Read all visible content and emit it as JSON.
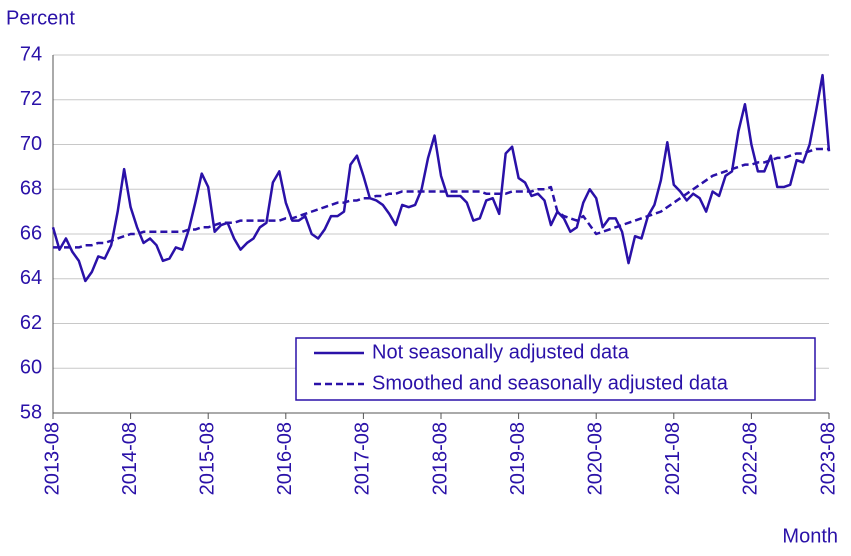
{
  "chart_data": {
    "type": "line",
    "ylabel": "Percent",
    "xlabel": "Month",
    "categories": [
      "2013-08",
      null,
      null,
      null,
      null,
      null,
      null,
      null,
      null,
      null,
      null,
      null,
      "2014-08",
      null,
      null,
      null,
      null,
      null,
      null,
      null,
      null,
      null,
      null,
      null,
      "2015-08",
      null,
      null,
      null,
      null,
      null,
      null,
      null,
      null,
      null,
      null,
      null,
      "2016-08",
      null,
      null,
      null,
      null,
      null,
      null,
      null,
      null,
      null,
      null,
      null,
      "2017-08",
      null,
      null,
      null,
      null,
      null,
      null,
      null,
      null,
      null,
      null,
      null,
      "2018-08",
      null,
      null,
      null,
      null,
      null,
      null,
      null,
      null,
      null,
      null,
      null,
      "2019-08",
      null,
      null,
      null,
      null,
      null,
      null,
      null,
      null,
      null,
      null,
      null,
      "2020-08",
      null,
      null,
      null,
      null,
      null,
      null,
      null,
      null,
      null,
      null,
      null,
      "2021-08",
      null,
      null,
      null,
      null,
      null,
      null,
      null,
      null,
      null,
      null,
      null,
      "2022-08",
      null,
      null,
      null,
      null,
      null,
      null,
      null,
      null,
      null,
      null,
      null,
      "2023-08"
    ],
    "series": [
      {
        "name": "Not seasonally adjusted data",
        "color": "#2a11a8",
        "dash": false,
        "values": [
          66.3,
          65.3,
          65.8,
          65.2,
          64.8,
          63.9,
          64.3,
          65.0,
          64.9,
          65.5,
          67.0,
          68.9,
          67.2,
          66.3,
          65.6,
          65.8,
          65.5,
          64.8,
          64.9,
          65.4,
          65.3,
          66.2,
          67.4,
          68.7,
          68.1,
          66.1,
          66.4,
          66.5,
          65.8,
          65.3,
          65.6,
          65.8,
          66.3,
          66.5,
          68.3,
          68.8,
          67.4,
          66.6,
          66.6,
          66.8,
          66.0,
          65.8,
          66.2,
          66.8,
          66.8,
          67.0,
          69.1,
          69.5,
          68.6,
          67.6,
          67.5,
          67.3,
          66.9,
          66.4,
          67.3,
          67.2,
          67.3,
          68.0,
          69.4,
          70.4,
          68.6,
          67.7,
          67.7,
          67.7,
          67.4,
          66.6,
          66.7,
          67.5,
          67.6,
          66.9,
          69.6,
          69.9,
          68.5,
          68.3,
          67.7,
          67.8,
          67.5,
          66.4,
          67.0,
          66.7,
          66.1,
          66.3,
          67.4,
          68.0,
          67.6,
          66.3,
          66.7,
          66.7,
          66.1,
          64.7,
          65.9,
          65.8,
          66.8,
          67.3,
          68.4,
          70.1,
          68.2,
          67.9,
          67.5,
          67.8,
          67.6,
          67.0,
          67.9,
          67.7,
          68.6,
          68.8,
          70.6,
          71.8,
          70.0,
          68.8,
          68.8,
          69.5,
          68.1,
          68.1,
          68.2,
          69.3,
          69.2,
          70.0,
          71.5,
          73.1,
          69.7
        ]
      },
      {
        "name": "Smoothed and seasonally adjusted data",
        "color": "#2a11a8",
        "dash": true,
        "values": [
          65.4,
          65.4,
          65.4,
          65.4,
          65.4,
          65.5,
          65.5,
          65.6,
          65.6,
          65.7,
          65.8,
          65.9,
          66.0,
          66.0,
          66.1,
          66.1,
          66.1,
          66.1,
          66.1,
          66.1,
          66.1,
          66.2,
          66.2,
          66.3,
          66.3,
          66.4,
          66.5,
          66.5,
          66.5,
          66.6,
          66.6,
          66.6,
          66.6,
          66.6,
          66.6,
          66.6,
          66.7,
          66.7,
          66.8,
          66.9,
          67.0,
          67.1,
          67.2,
          67.3,
          67.4,
          67.4,
          67.5,
          67.5,
          67.6,
          67.6,
          67.7,
          67.7,
          67.8,
          67.8,
          67.9,
          67.9,
          67.9,
          67.9,
          67.9,
          67.9,
          67.9,
          67.9,
          67.9,
          67.9,
          67.9,
          67.9,
          67.9,
          67.8,
          67.8,
          67.8,
          67.8,
          67.9,
          67.9,
          67.9,
          67.9,
          68.0,
          68.0,
          68.1,
          67.0,
          66.8,
          66.7,
          66.6,
          66.8,
          66.4,
          66.0,
          66.1,
          66.2,
          66.3,
          66.4,
          66.5,
          66.6,
          66.7,
          66.8,
          66.9,
          67.0,
          67.2,
          67.4,
          67.6,
          67.8,
          68.0,
          68.2,
          68.4,
          68.6,
          68.7,
          68.8,
          68.9,
          69.0,
          69.1,
          69.1,
          69.2,
          69.2,
          69.3,
          69.4,
          69.4,
          69.5,
          69.6,
          69.6,
          69.7,
          69.8,
          69.8,
          69.8
        ]
      }
    ],
    "ylim": [
      58,
      74
    ],
    "yticks": [
      58,
      60,
      62,
      64,
      66,
      68,
      70,
      72,
      74
    ],
    "grid": true
  }
}
